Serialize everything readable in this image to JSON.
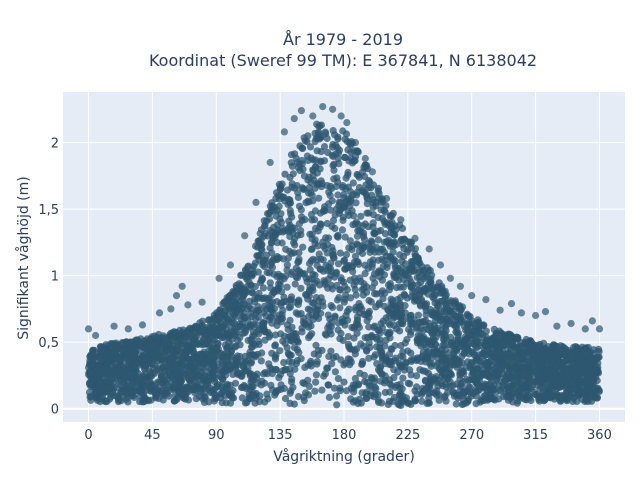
{
  "chart_data": {
    "type": "scatter",
    "title_line1": "År 1979 - 2019",
    "title_line2": "Koordinat (Sweref 99 TM): E 367841, N 6138042",
    "xlabel": "Vågriktning (grader)",
    "ylabel": "Signifikant våghöjd (m)",
    "xlim": [
      -18,
      378
    ],
    "ylim": [
      -0.1,
      2.38
    ],
    "x_ticks": [
      0,
      45,
      90,
      135,
      180,
      225,
      270,
      315,
      360
    ],
    "x_tick_labels": [
      "0",
      "45",
      "90",
      "135",
      "180",
      "225",
      "270",
      "315",
      "360"
    ],
    "y_ticks": [
      0,
      0.5,
      1,
      1.5,
      2
    ],
    "y_tick_labels": [
      "0",
      "0,5",
      "1",
      "1,5",
      "2"
    ],
    "marker_color": "#2e5770",
    "plot_bg": "#e5ecf6",
    "grid": true,
    "envelope": {
      "description_units": "upper extent of dense point cloud, wave height (m) vs direction (degrees)",
      "x": [
        0,
        20,
        45,
        70,
        90,
        105,
        120,
        135,
        150,
        165,
        180,
        195,
        210,
        225,
        240,
        255,
        270,
        285,
        300,
        315,
        330,
        345,
        360
      ],
      "upper": [
        0.45,
        0.5,
        0.55,
        0.6,
        0.72,
        0.95,
        1.3,
        1.75,
        2.05,
        2.18,
        2.1,
        1.85,
        1.55,
        1.3,
        1.05,
        0.85,
        0.7,
        0.6,
        0.55,
        0.5,
        0.48,
        0.47,
        0.45
      ],
      "lower": [
        0.05,
        0.05,
        0.05,
        0.05,
        0.04,
        0.03,
        0.03,
        0.02,
        0.02,
        0.02,
        0.02,
        0.02,
        0.02,
        0.02,
        0.03,
        0.03,
        0.03,
        0.04,
        0.04,
        0.05,
        0.05,
        0.05,
        0.05
      ]
    },
    "outliers": [
      {
        "x": 0,
        "y": 0.6
      },
      {
        "x": 5,
        "y": 0.55
      },
      {
        "x": 18,
        "y": 0.62
      },
      {
        "x": 28,
        "y": 0.6
      },
      {
        "x": 38,
        "y": 0.63
      },
      {
        "x": 50,
        "y": 0.72
      },
      {
        "x": 58,
        "y": 0.75
      },
      {
        "x": 62,
        "y": 0.85
      },
      {
        "x": 66,
        "y": 0.92
      },
      {
        "x": 70,
        "y": 0.78
      },
      {
        "x": 80,
        "y": 0.8
      },
      {
        "x": 92,
        "y": 0.98
      },
      {
        "x": 100,
        "y": 1.08
      },
      {
        "x": 110,
        "y": 1.3
      },
      {
        "x": 118,
        "y": 1.55
      },
      {
        "x": 128,
        "y": 1.85
      },
      {
        "x": 138,
        "y": 2.08
      },
      {
        "x": 145,
        "y": 2.18
      },
      {
        "x": 150,
        "y": 2.24
      },
      {
        "x": 158,
        "y": 2.2
      },
      {
        "x": 165,
        "y": 2.27
      },
      {
        "x": 172,
        "y": 2.25
      },
      {
        "x": 178,
        "y": 2.2
      },
      {
        "x": 182,
        "y": 2.15
      },
      {
        "x": 188,
        "y": 2.0
      },
      {
        "x": 195,
        "y": 1.88
      },
      {
        "x": 200,
        "y": 1.78
      },
      {
        "x": 210,
        "y": 1.58
      },
      {
        "x": 220,
        "y": 1.42
      },
      {
        "x": 230,
        "y": 1.28
      },
      {
        "x": 240,
        "y": 1.2
      },
      {
        "x": 248,
        "y": 1.08
      },
      {
        "x": 255,
        "y": 0.98
      },
      {
        "x": 262,
        "y": 0.92
      },
      {
        "x": 270,
        "y": 0.85
      },
      {
        "x": 280,
        "y": 0.82
      },
      {
        "x": 290,
        "y": 0.74
      },
      {
        "x": 298,
        "y": 0.79
      },
      {
        "x": 305,
        "y": 0.72
      },
      {
        "x": 315,
        "y": 0.7
      },
      {
        "x": 322,
        "y": 0.73
      },
      {
        "x": 330,
        "y": 0.62
      },
      {
        "x": 340,
        "y": 0.64
      },
      {
        "x": 350,
        "y": 0.6
      },
      {
        "x": 355,
        "y": 0.66
      },
      {
        "x": 360,
        "y": 0.6
      }
    ]
  }
}
